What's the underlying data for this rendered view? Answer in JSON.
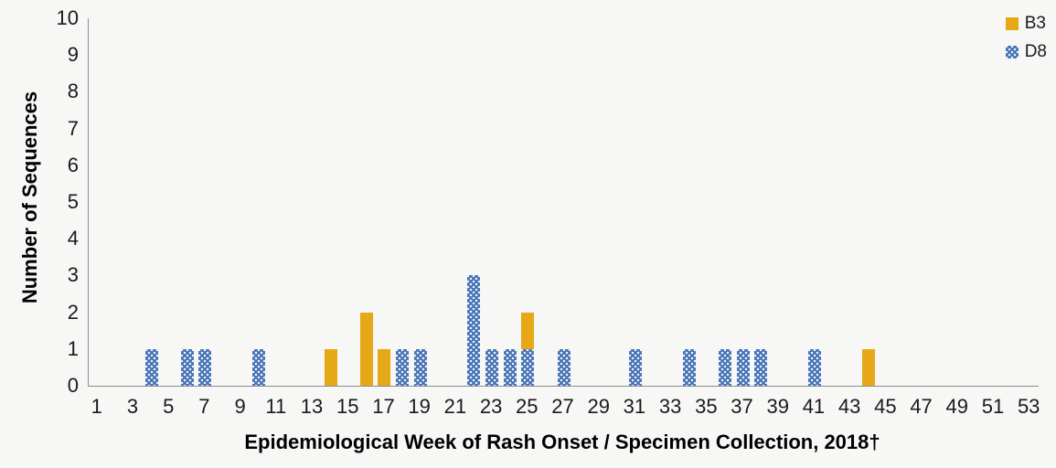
{
  "colors": {
    "b3": "#e6a817",
    "d8": "#4a76b8",
    "axis_line": "#8c8c8c",
    "background": "#f7f7f6",
    "text": "#1a1a1a"
  },
  "legend": {
    "items": [
      {
        "label": "B3",
        "swatch": "solid-orange"
      },
      {
        "label": "D8",
        "swatch": "dotted-blue"
      }
    ]
  },
  "chart_data": {
    "type": "bar",
    "stacked": true,
    "title": "",
    "xlabel": "Epidemiological Week of Rash Onset / Specimen Collection, 2018†",
    "ylabel": "Number of Sequences",
    "x_categories_weeks": [
      1,
      2,
      3,
      4,
      5,
      6,
      7,
      8,
      9,
      10,
      11,
      12,
      13,
      14,
      15,
      16,
      17,
      18,
      19,
      20,
      21,
      22,
      23,
      24,
      25,
      26,
      27,
      28,
      29,
      30,
      31,
      32,
      33,
      34,
      35,
      36,
      37,
      38,
      39,
      40,
      41,
      42,
      43,
      44,
      45,
      46,
      47,
      48,
      49,
      50,
      51,
      52,
      53
    ],
    "x_tick_labels": [
      1,
      3,
      5,
      7,
      9,
      11,
      13,
      15,
      17,
      19,
      21,
      23,
      25,
      27,
      29,
      31,
      33,
      35,
      37,
      39,
      41,
      43,
      45,
      47,
      49,
      51,
      53
    ],
    "y_ticks": [
      0,
      1,
      2,
      3,
      4,
      5,
      6,
      7,
      8,
      9,
      10
    ],
    "ylim": [
      0,
      10
    ],
    "grid": false,
    "legend_position": "top-right",
    "stack_order_bottom_to_top": [
      "D8",
      "B3"
    ],
    "series": [
      {
        "name": "B3",
        "color": "#e6a817",
        "pattern": "solid",
        "values": [
          0,
          0,
          0,
          0,
          0,
          0,
          0,
          0,
          0,
          0,
          0,
          0,
          0,
          1,
          0,
          2,
          1,
          0,
          0,
          0,
          0,
          0,
          0,
          0,
          1,
          0,
          0,
          0,
          0,
          0,
          0,
          0,
          0,
          0,
          0,
          0,
          0,
          0,
          0,
          0,
          0,
          0,
          0,
          1,
          0,
          0,
          0,
          0,
          0,
          0,
          0,
          0,
          0
        ]
      },
      {
        "name": "D8",
        "color": "#4a76b8",
        "pattern": "dots",
        "values": [
          0,
          0,
          0,
          1,
          0,
          1,
          1,
          0,
          0,
          1,
          0,
          0,
          0,
          0,
          0,
          0,
          0,
          1,
          1,
          0,
          0,
          3,
          1,
          1,
          1,
          0,
          1,
          0,
          0,
          0,
          1,
          0,
          0,
          1,
          0,
          1,
          1,
          1,
          0,
          0,
          1,
          0,
          0,
          0,
          0,
          0,
          0,
          0,
          0,
          0,
          0,
          0,
          0
        ]
      }
    ]
  }
}
